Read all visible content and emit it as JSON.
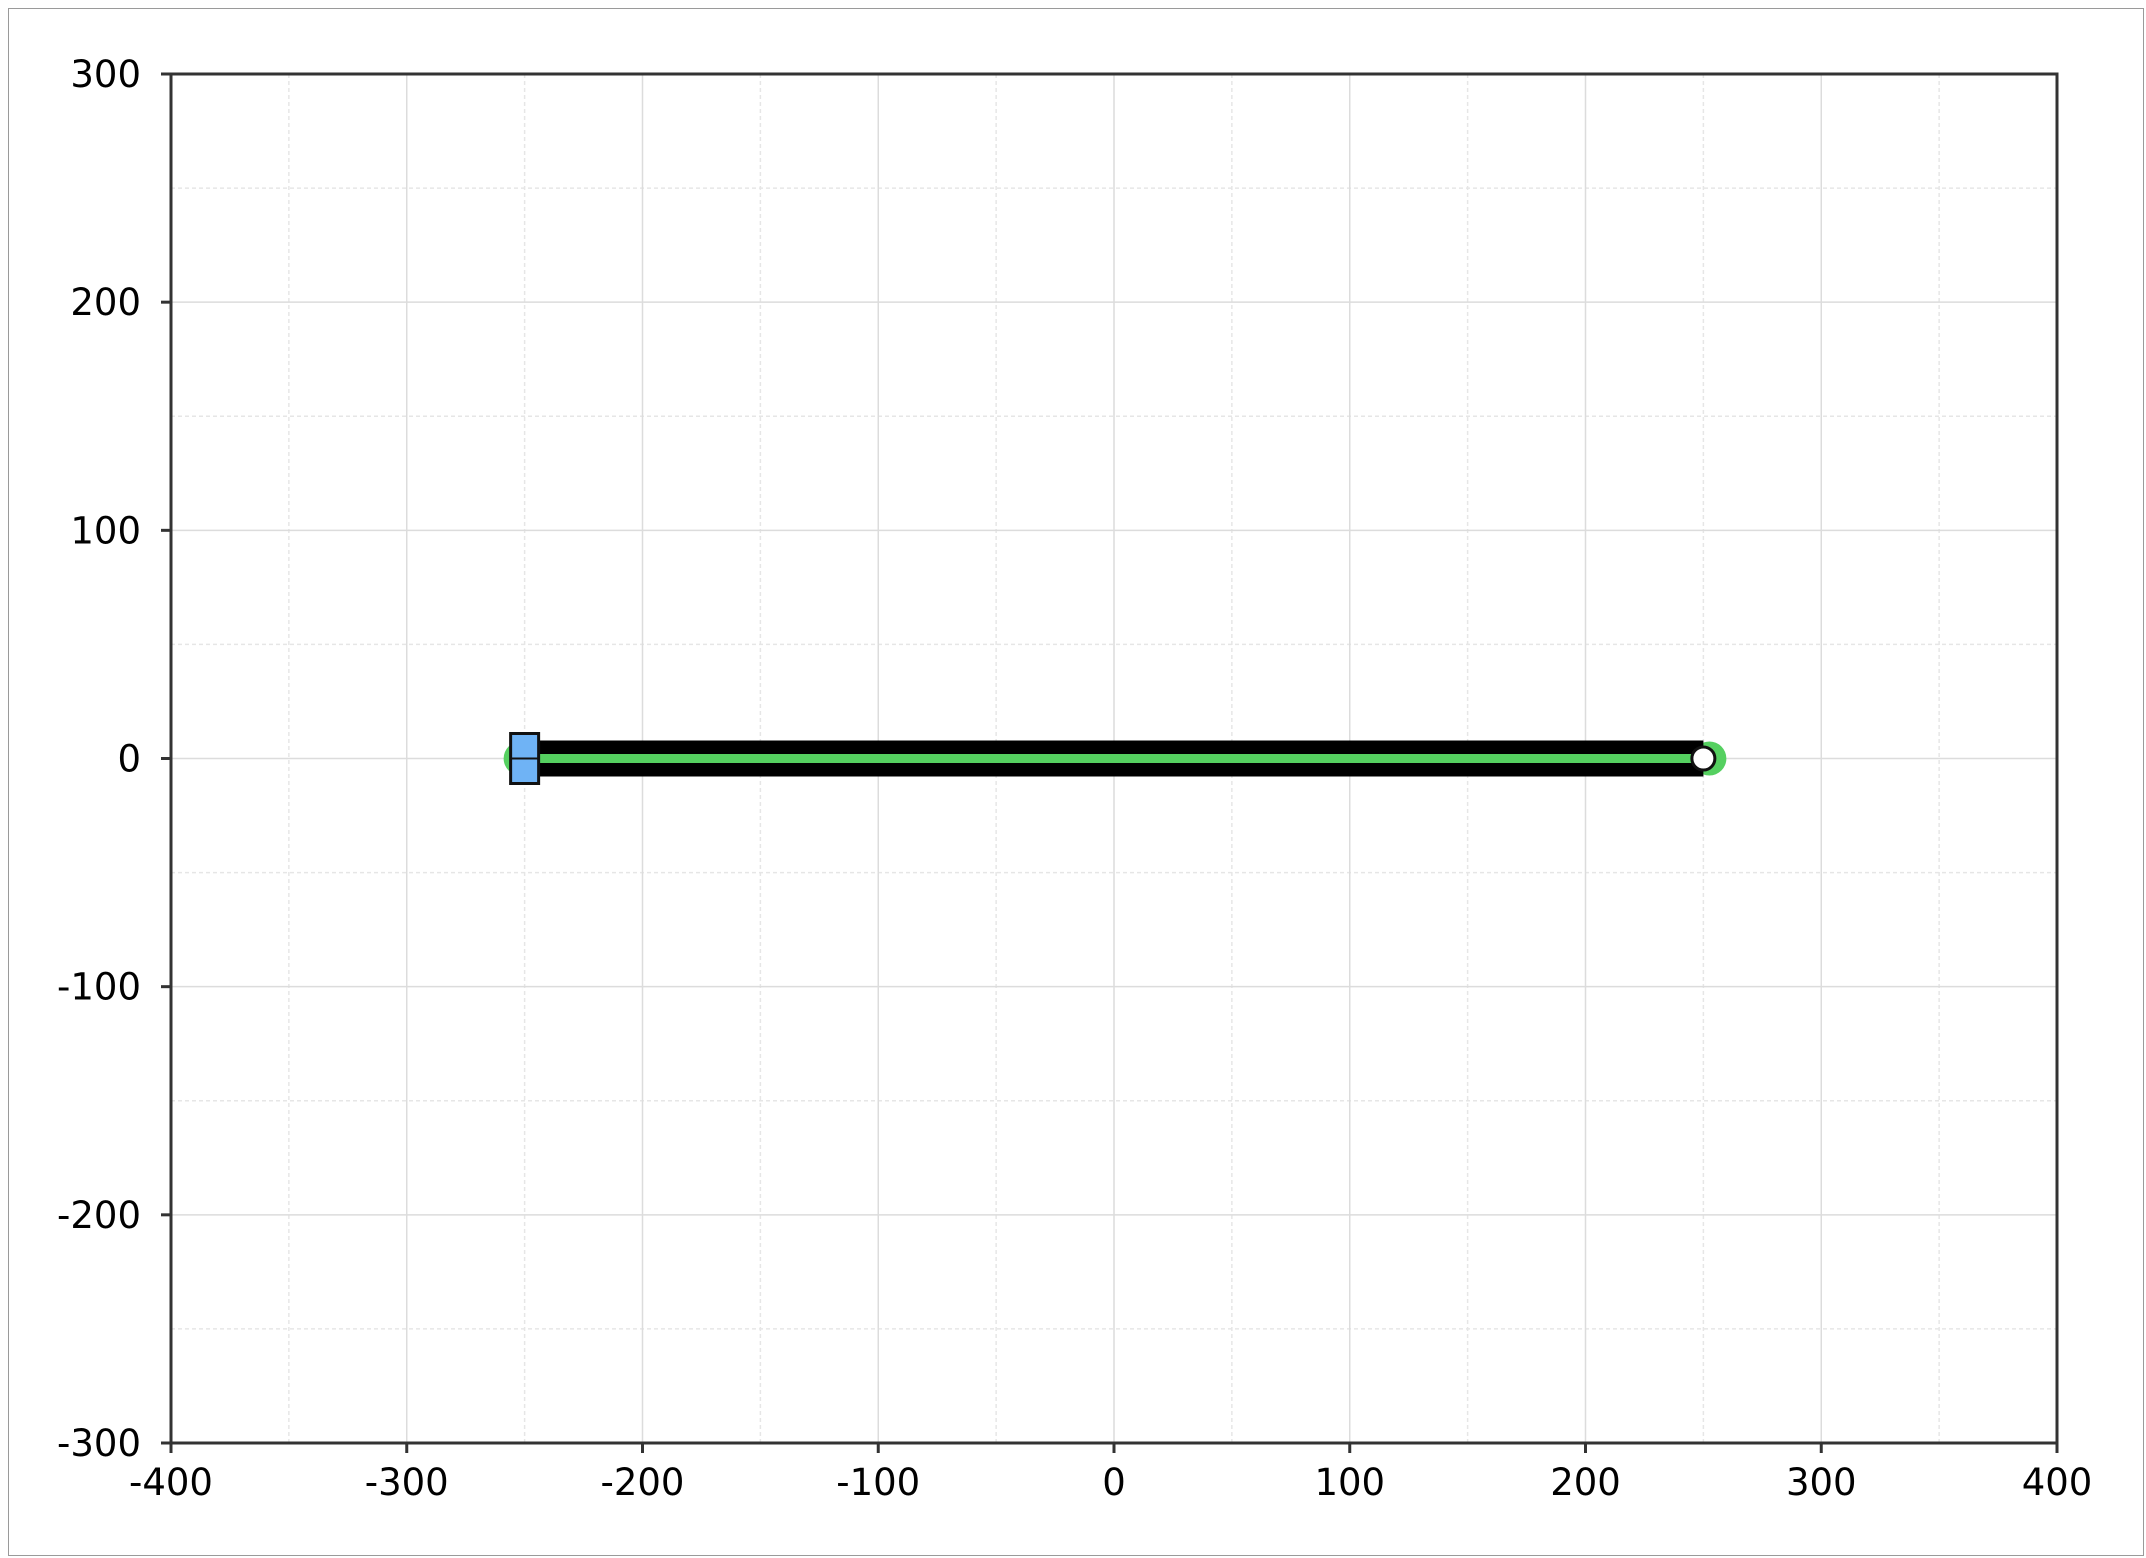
{
  "chart_data": {
    "type": "line",
    "title": "",
    "xlabel": "",
    "ylabel": "",
    "xlim": [
      -400,
      400
    ],
    "ylim": [
      -300,
      300
    ],
    "x_ticks": [
      -400,
      -300,
      -200,
      -100,
      0,
      100,
      200,
      300,
      400
    ],
    "y_ticks": [
      -300,
      -200,
      -100,
      0,
      100,
      200,
      300
    ],
    "x_tick_labels": [
      "-400",
      "-300",
      "-200",
      "-100",
      "0",
      "100",
      "200",
      "300",
      "400"
    ],
    "y_tick_labels": [
      "-300",
      "-200",
      "-100",
      "0",
      "100",
      "200",
      "300"
    ],
    "grid": true,
    "minor_grid": true,
    "legend": "none",
    "elements": {
      "bar_segment": {
        "x": [
          -250,
          250
        ],
        "y": [
          0,
          0
        ],
        "color": "#000000"
      },
      "highlight_segment": {
        "x": [
          -250,
          250
        ],
        "y": [
          0,
          0
        ],
        "color": "#55d060"
      },
      "square_handle": {
        "x": -250,
        "y": 0,
        "color": "#6fb3f5"
      },
      "circle_handle": {
        "x": 250,
        "y": 0,
        "color": "#ffffff"
      }
    }
  }
}
